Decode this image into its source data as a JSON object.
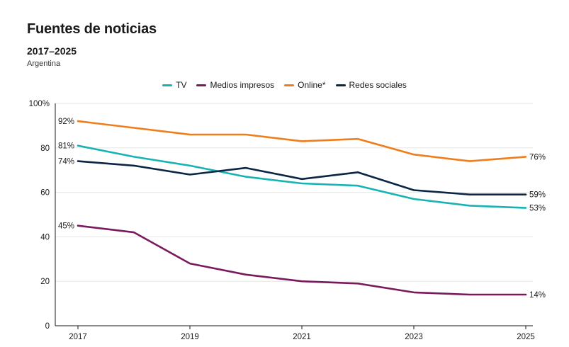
{
  "chart_data": {
    "type": "line",
    "title": "Fuentes de noticias",
    "subtitle": "2017–2025",
    "note": "Argentina",
    "x": [
      2017,
      2018,
      2019,
      2020,
      2021,
      2022,
      2023,
      2024,
      2025
    ],
    "x_ticks": [
      "2017",
      "2019",
      "2021",
      "2023",
      "2025"
    ],
    "y_ticks": [
      "0",
      "20",
      "40",
      "60",
      "80",
      "100%"
    ],
    "ylim": [
      0,
      100
    ],
    "grid": true,
    "legend_position": "top-center",
    "series": [
      {
        "name": "TV",
        "color": "#17b3b3",
        "values": [
          81,
          76,
          72,
          67,
          64,
          63,
          57,
          54,
          53
        ],
        "start_label": "81%",
        "end_label": "53%"
      },
      {
        "name": "Medios impresos",
        "color": "#7a1a5e",
        "values": [
          45,
          42,
          28,
          23,
          20,
          19,
          15,
          14,
          14
        ],
        "start_label": "45%",
        "end_label": "14%"
      },
      {
        "name": "Online*",
        "color": "#ef7d1a",
        "values": [
          92,
          89,
          86,
          86,
          83,
          84,
          77,
          74,
          76
        ],
        "start_label": "92%",
        "end_label": "76%"
      },
      {
        "name": "Redes sociales",
        "color": "#0b2545",
        "values": [
          74,
          72,
          68,
          71,
          66,
          69,
          61,
          59,
          59
        ],
        "start_label": "74%",
        "end_label": "59%"
      }
    ]
  }
}
